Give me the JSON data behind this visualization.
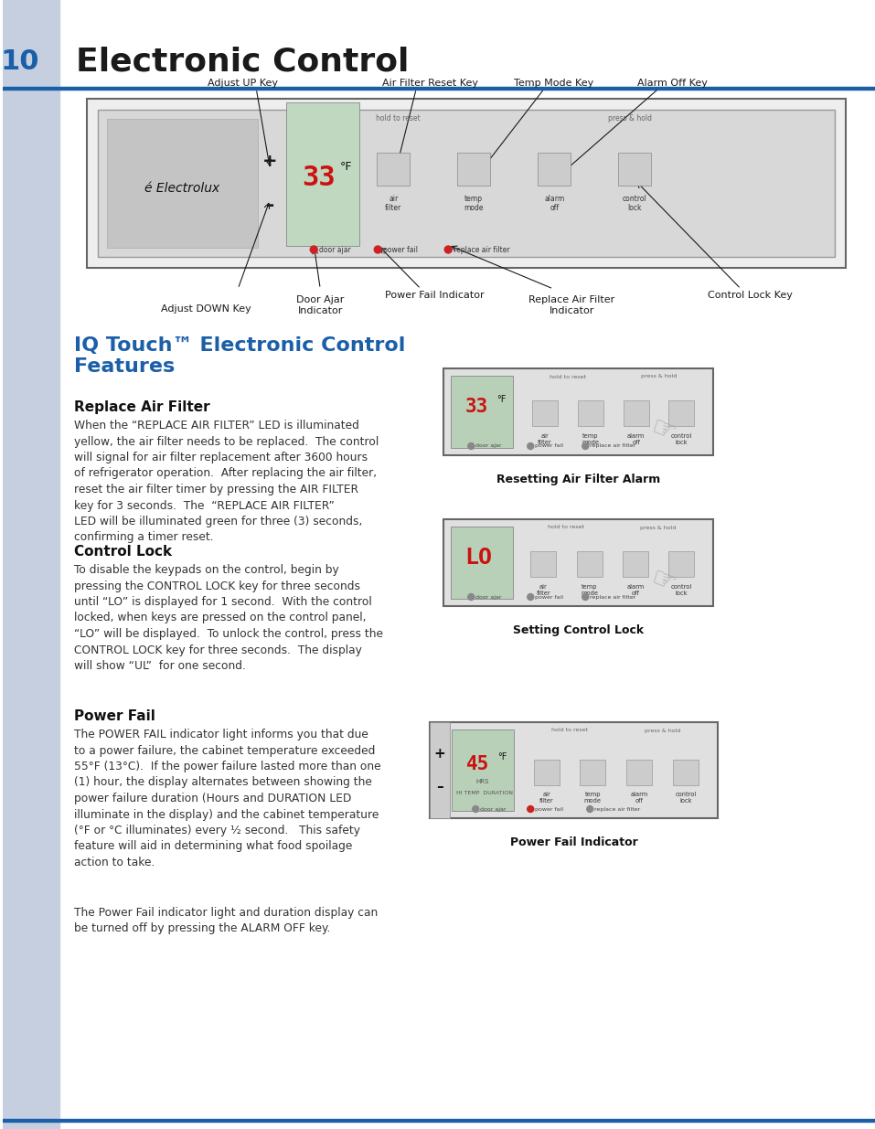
{
  "page_number": "10",
  "page_title": "Electronic Control",
  "section_title": "IQ Touch™ Electronic Control\nFeatures",
  "section_title_color": "#1a5fa8",
  "bg_color": "#ffffff",
  "sidebar_color": "#c5cfe0",
  "header_line_color": "#1a5fa8",
  "footer_line_color": "#1a5fa8",
  "subsection1_title": "Replace Air Filter",
  "subsection1_body": "When the “REPLACE AIR FILTER” LED is illuminated\nyellow, the air filter needs to be replaced.  The control\nwill signal for air filter replacement after 3600 hours\nof refrigerator operation.  After replacing the air filter,\nreset the air filter timer by pressing the AIR FILTER\nkey for 3 seconds.  The  “REPLACE AIR FILTER”\nLED will be illuminated green for three (3) seconds,\nconfirming a timer reset.",
  "subsection2_title": "Control Lock",
  "subsection2_body": "To disable the keypads on the control, begin by\npressing the CONTROL LOCK key for three seconds\nuntil “LO” is displayed for 1 second.  With the control\nlocked, when keys are pressed on the control panel,\n“LO” will be displayed.  To unlock the control, press the\nCONTROL LOCK key for three seconds.  The display\nwill show “UL”  for one second.",
  "subsection3_title": "Power Fail",
  "subsection3_body": "The POWER FAIL indicator light informs you that due\nto a power failure, the cabinet temperature exceeded\n55°F (13°C).  If the power failure lasted more than one\n(1) hour, the display alternates between showing the\npower failure duration (Hours and DURATION LED\nilluminate in the display) and the cabinet temperature\n(°F or °C illuminates) every ½ second.   This safety\nfeature will aid in determining what food spoilage\naction to take.",
  "subsection3_body2": "The Power Fail indicator light and duration display can\nbe turned off by pressing the ALARM OFF key.",
  "diagram1_caption": "Resetting Air Filter Alarm",
  "diagram2_caption": "Setting Control Lock",
  "diagram3_caption": "Power Fail Indicator",
  "top_diagram_labels": {
    "adjust_up": "Adjust UP Key",
    "air_filter_reset": "Air Filter Reset Key",
    "temp_mode": "Temp Mode Key",
    "alarm_off": "Alarm Off Key",
    "adjust_down": "Adjust DOWN Key",
    "door_ajar": "Door Ajar\nIndicator",
    "power_fail": "Power Fail Indicator",
    "replace_air_filter": "Replace Air Filter\nIndicator",
    "control_lock_key": "Control Lock Key"
  },
  "text_color": "#1a1a1a",
  "body_color": "#333333",
  "display_33": "33",
  "display_lo": "LO",
  "display_45": "45"
}
